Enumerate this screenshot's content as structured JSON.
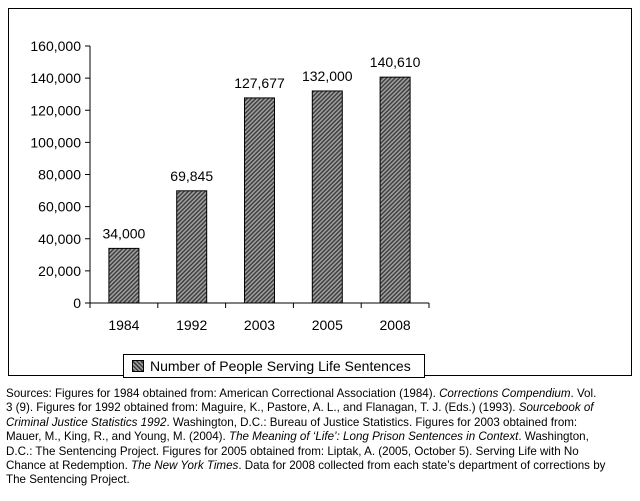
{
  "chart_data": {
    "type": "bar",
    "categories": [
      "1984",
      "1992",
      "2003",
      "2005",
      "2008"
    ],
    "series": [
      {
        "name": "Number of People Serving Life Sentences",
        "values": [
          34000,
          69845,
          127677,
          132000,
          140610
        ]
      }
    ],
    "data_labels": [
      "34,000",
      "69,845",
      "127,677",
      "132,000",
      "140,610"
    ],
    "y_ticks": [
      "0",
      "20,000",
      "40,000",
      "60,000",
      "80,000",
      "100,000",
      "120,000",
      "140,000",
      "160,000"
    ],
    "ylim": [
      0,
      160000
    ],
    "title": "",
    "xlabel": "",
    "ylabel": "",
    "grid": false,
    "legend_position": "bottom",
    "bar_fill": "hatched dark gray",
    "colors": {
      "bar_dark": "#404040",
      "bar_light": "#a0a0a0",
      "axis": "#000000"
    }
  },
  "sources": {
    "lines": [
      [
        "Sources: Figures for 1984 obtained from: American Correctional Association (1984). ",
        {
          "i": "Corrections Compendium"
        },
        ".  Vol."
      ],
      [
        "3 (9).  Figures for 1992 obtained from: Maguire, K., Pastore, A. L., and Flanagan, T. J. (Eds.) (1993). ",
        {
          "i": "Sourcebook of"
        }
      ],
      [
        {
          "i": "Criminal Justice Statistics 1992"
        },
        ". Washington, D.C.: Bureau of Justice Statistics.  Figures for 2003 obtained from:"
      ],
      [
        "Mauer, M., King, R., and Young, M. (2004). ",
        {
          "i": "The Meaning of ‘Life’: Long Prison Sentences in Context"
        },
        ".  Washington,"
      ],
      [
        "D.C.: The Sentencing Project.  Figures for 2005 obtained from: Liptak, A. (2005, October 5). Serving Life with No"
      ],
      [
        "Chance at Redemption. ",
        {
          "i": "The New York Times"
        },
        ". Data for 2008 collected from each state’s department of corrections by"
      ],
      [
        "The Sentencing Project."
      ]
    ]
  }
}
